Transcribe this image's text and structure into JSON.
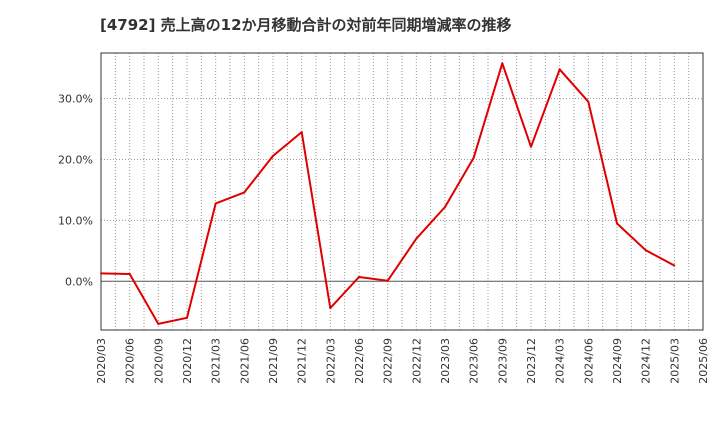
{
  "chart_data": {
    "type": "line",
    "title": "[4792]  売上高の12か月移動合計の対前年同期増減率の推移",
    "xlabel": "",
    "ylabel": "",
    "ylim": [
      -8,
      37.5
    ],
    "yticks": [
      0,
      10,
      20,
      30
    ],
    "ytick_labels": [
      "0.0%",
      "10.0%",
      "20.0%",
      "30.0%"
    ],
    "grid": true,
    "categories": [
      "2020/03",
      "2020/06",
      "2020/09",
      "2020/12",
      "2021/03",
      "2021/06",
      "2021/09",
      "2021/12",
      "2022/03",
      "2022/06",
      "2022/09",
      "2022/12",
      "2023/03",
      "2023/06",
      "2023/09",
      "2023/12",
      "2024/03",
      "2024/06",
      "2024/09",
      "2024/12",
      "2025/03",
      "2025/06"
    ],
    "series": [
      {
        "name": "増減率",
        "color": "#e00000",
        "values": [
          1.3,
          1.2,
          -7.0,
          -6.0,
          12.8,
          14.6,
          20.6,
          24.5,
          -4.4,
          0.7,
          0.1,
          7.0,
          12.2,
          20.3,
          35.8,
          22.1,
          34.8,
          29.5,
          9.5,
          5.1,
          2.6,
          null
        ]
      }
    ]
  }
}
